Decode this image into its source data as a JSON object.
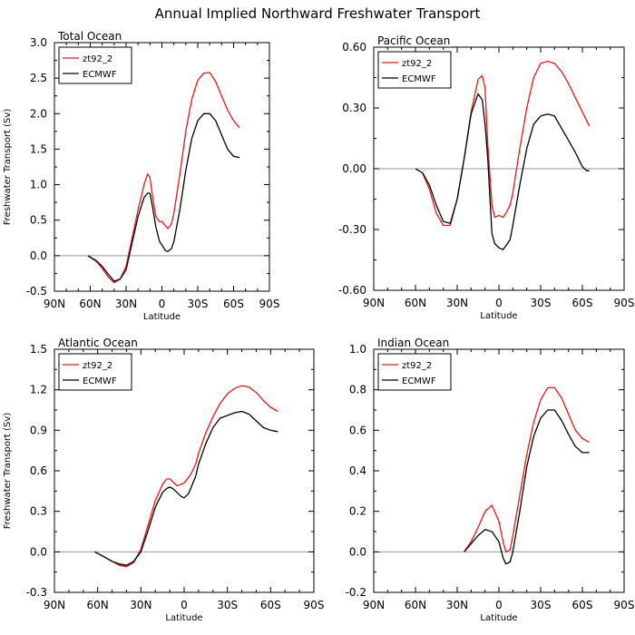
{
  "title": "Annual Implied Northward Freshwater Transport",
  "x_tick_labels": [
    "90N",
    "60N",
    "30N",
    "0",
    "30S",
    "60S",
    "90S"
  ],
  "chart_data": [
    {
      "type": "line",
      "title": "Total Ocean",
      "xlabel": "Latitude",
      "ylabel": "Freshwater Transport (Sv)",
      "xlim": [
        -90,
        90
      ],
      "ylim": [
        -0.5,
        3.0
      ],
      "yticks": [
        "-0.5",
        "0.0",
        "0.5",
        "1.0",
        "1.5",
        "2.0",
        "2.5",
        "3.0"
      ],
      "legend": "top-left",
      "series": [
        {
          "name": "zt92_2",
          "color": "#e31a1c",
          "x": [
            -62,
            -55,
            -50,
            -45,
            -40,
            -35,
            -30,
            -25,
            -20,
            -15,
            -12,
            -10,
            -8,
            -5,
            -2,
            0,
            3,
            5,
            8,
            10,
            15,
            20,
            25,
            30,
            35,
            40,
            45,
            50,
            55,
            60,
            65
          ],
          "y": [
            0.0,
            -0.08,
            -0.18,
            -0.3,
            -0.38,
            -0.33,
            -0.15,
            0.25,
            0.65,
            1.0,
            1.15,
            1.1,
            0.85,
            0.55,
            0.48,
            0.48,
            0.42,
            0.38,
            0.45,
            0.6,
            1.15,
            1.75,
            2.2,
            2.47,
            2.57,
            2.58,
            2.45,
            2.25,
            2.05,
            1.9,
            1.8
          ]
        },
        {
          "name": "ECMWF",
          "color": "#000000",
          "x": [
            -62,
            -55,
            -50,
            -45,
            -40,
            -35,
            -30,
            -25,
            -20,
            -15,
            -12,
            -10,
            -8,
            -5,
            -2,
            0,
            3,
            5,
            8,
            10,
            15,
            20,
            25,
            30,
            35,
            40,
            45,
            50,
            55,
            60,
            65
          ],
          "y": [
            0.0,
            -0.07,
            -0.15,
            -0.26,
            -0.36,
            -0.33,
            -0.2,
            0.18,
            0.55,
            0.82,
            0.88,
            0.88,
            0.7,
            0.4,
            0.2,
            0.15,
            0.07,
            0.06,
            0.1,
            0.2,
            0.65,
            1.2,
            1.65,
            1.9,
            2.0,
            2.0,
            1.9,
            1.7,
            1.5,
            1.4,
            1.38
          ]
        }
      ]
    },
    {
      "type": "line",
      "title": "Pacific Ocean",
      "xlabel": "Latitude",
      "ylabel": "",
      "xlim": [
        -90,
        90
      ],
      "ylim": [
        -0.6,
        0.6
      ],
      "yticks": [
        "-0.60",
        "-0.30",
        "0.00",
        "0.30",
        "0.60"
      ],
      "legend": "top-left",
      "series": [
        {
          "name": "zt92_2",
          "color": "#e31a1c",
          "x": [
            -60,
            -55,
            -50,
            -45,
            -40,
            -35,
            -30,
            -25,
            -20,
            -15,
            -12,
            -10,
            -8,
            -5,
            -3,
            0,
            3,
            5,
            8,
            10,
            15,
            20,
            25,
            30,
            35,
            40,
            45,
            50,
            55,
            60,
            65
          ],
          "y": [
            0.0,
            -0.02,
            -0.1,
            -0.22,
            -0.28,
            -0.28,
            -0.15,
            0.05,
            0.28,
            0.44,
            0.46,
            0.4,
            0.12,
            -0.18,
            -0.24,
            -0.23,
            -0.24,
            -0.22,
            -0.18,
            -0.12,
            0.1,
            0.3,
            0.45,
            0.52,
            0.53,
            0.52,
            0.48,
            0.42,
            0.35,
            0.28,
            0.21
          ]
        },
        {
          "name": "ECMWF",
          "color": "#000000",
          "x": [
            -60,
            -55,
            -50,
            -45,
            -40,
            -35,
            -30,
            -25,
            -20,
            -15,
            -12,
            -10,
            -8,
            -5,
            -3,
            0,
            3,
            5,
            8,
            10,
            15,
            20,
            25,
            30,
            35,
            40,
            45,
            50,
            55,
            60,
            63,
            65
          ],
          "y": [
            0.0,
            -0.02,
            -0.08,
            -0.18,
            -0.26,
            -0.27,
            -0.15,
            0.05,
            0.27,
            0.37,
            0.34,
            0.22,
            0.05,
            -0.32,
            -0.37,
            -0.39,
            -0.4,
            -0.38,
            -0.35,
            -0.28,
            -0.08,
            0.1,
            0.22,
            0.26,
            0.27,
            0.26,
            0.2,
            0.14,
            0.08,
            0.01,
            -0.01,
            -0.01
          ]
        }
      ]
    },
    {
      "type": "line",
      "title": "Atlantic Ocean",
      "xlabel": "Latitude",
      "ylabel": "Freshwater Transport (Sv)",
      "xlim": [
        -90,
        90
      ],
      "ylim": [
        -0.3,
        1.5
      ],
      "yticks": [
        "-0.3",
        "0.0",
        "0.3",
        "0.6",
        "0.9",
        "1.2",
        "1.5"
      ],
      "legend": "top-left",
      "series": [
        {
          "name": "zt92_2",
          "color": "#e31a1c",
          "x": [
            -62,
            -55,
            -50,
            -45,
            -40,
            -35,
            -30,
            -25,
            -20,
            -15,
            -12,
            -10,
            -8,
            -5,
            -2,
            0,
            3,
            5,
            8,
            10,
            15,
            20,
            25,
            30,
            35,
            40,
            45,
            50,
            55,
            60,
            65
          ],
          "y": [
            0.0,
            -0.04,
            -0.07,
            -0.1,
            -0.11,
            -0.08,
            0.02,
            0.2,
            0.38,
            0.5,
            0.54,
            0.54,
            0.52,
            0.49,
            0.5,
            0.51,
            0.55,
            0.58,
            0.65,
            0.73,
            0.88,
            1.0,
            1.1,
            1.17,
            1.21,
            1.23,
            1.22,
            1.18,
            1.12,
            1.07,
            1.04
          ]
        },
        {
          "name": "ECMWF",
          "color": "#000000",
          "x": [
            -62,
            -55,
            -50,
            -45,
            -40,
            -35,
            -30,
            -25,
            -20,
            -15,
            -12,
            -10,
            -8,
            -5,
            -2,
            0,
            3,
            5,
            8,
            10,
            15,
            20,
            25,
            30,
            35,
            40,
            45,
            50,
            55,
            60,
            65
          ],
          "y": [
            0.0,
            -0.04,
            -0.07,
            -0.09,
            -0.1,
            -0.07,
            0.0,
            0.16,
            0.33,
            0.44,
            0.47,
            0.48,
            0.47,
            0.44,
            0.41,
            0.4,
            0.43,
            0.48,
            0.56,
            0.65,
            0.8,
            0.92,
            0.99,
            1.01,
            1.03,
            1.04,
            1.02,
            0.97,
            0.92,
            0.9,
            0.89
          ]
        }
      ]
    },
    {
      "type": "line",
      "title": "Indian Ocean",
      "xlabel": "Latitude",
      "ylabel": "",
      "xlim": [
        -90,
        90
      ],
      "ylim": [
        -0.2,
        1.0
      ],
      "yticks": [
        "-0.2",
        "0.0",
        "0.2",
        "0.4",
        "0.6",
        "0.8",
        "1.0"
      ],
      "legend": "top-left",
      "series": [
        {
          "name": "zt92_2",
          "color": "#e31a1c",
          "x": [
            -25,
            -20,
            -15,
            -10,
            -5,
            0,
            3,
            5,
            8,
            10,
            15,
            20,
            25,
            30,
            35,
            40,
            45,
            50,
            55,
            60,
            65
          ],
          "y": [
            0.0,
            0.05,
            0.12,
            0.2,
            0.23,
            0.15,
            0.05,
            0.0,
            0.01,
            0.08,
            0.28,
            0.48,
            0.64,
            0.75,
            0.81,
            0.81,
            0.76,
            0.68,
            0.6,
            0.56,
            0.54
          ]
        },
        {
          "name": "ECMWF",
          "color": "#000000",
          "x": [
            -25,
            -20,
            -15,
            -10,
            -5,
            0,
            3,
            5,
            8,
            10,
            15,
            20,
            25,
            30,
            35,
            40,
            45,
            50,
            55,
            60,
            65
          ],
          "y": [
            0.0,
            0.04,
            0.08,
            0.11,
            0.1,
            0.05,
            -0.03,
            -0.06,
            -0.05,
            0.0,
            0.2,
            0.42,
            0.57,
            0.66,
            0.7,
            0.7,
            0.65,
            0.58,
            0.52,
            0.49,
            0.49
          ]
        }
      ]
    }
  ]
}
